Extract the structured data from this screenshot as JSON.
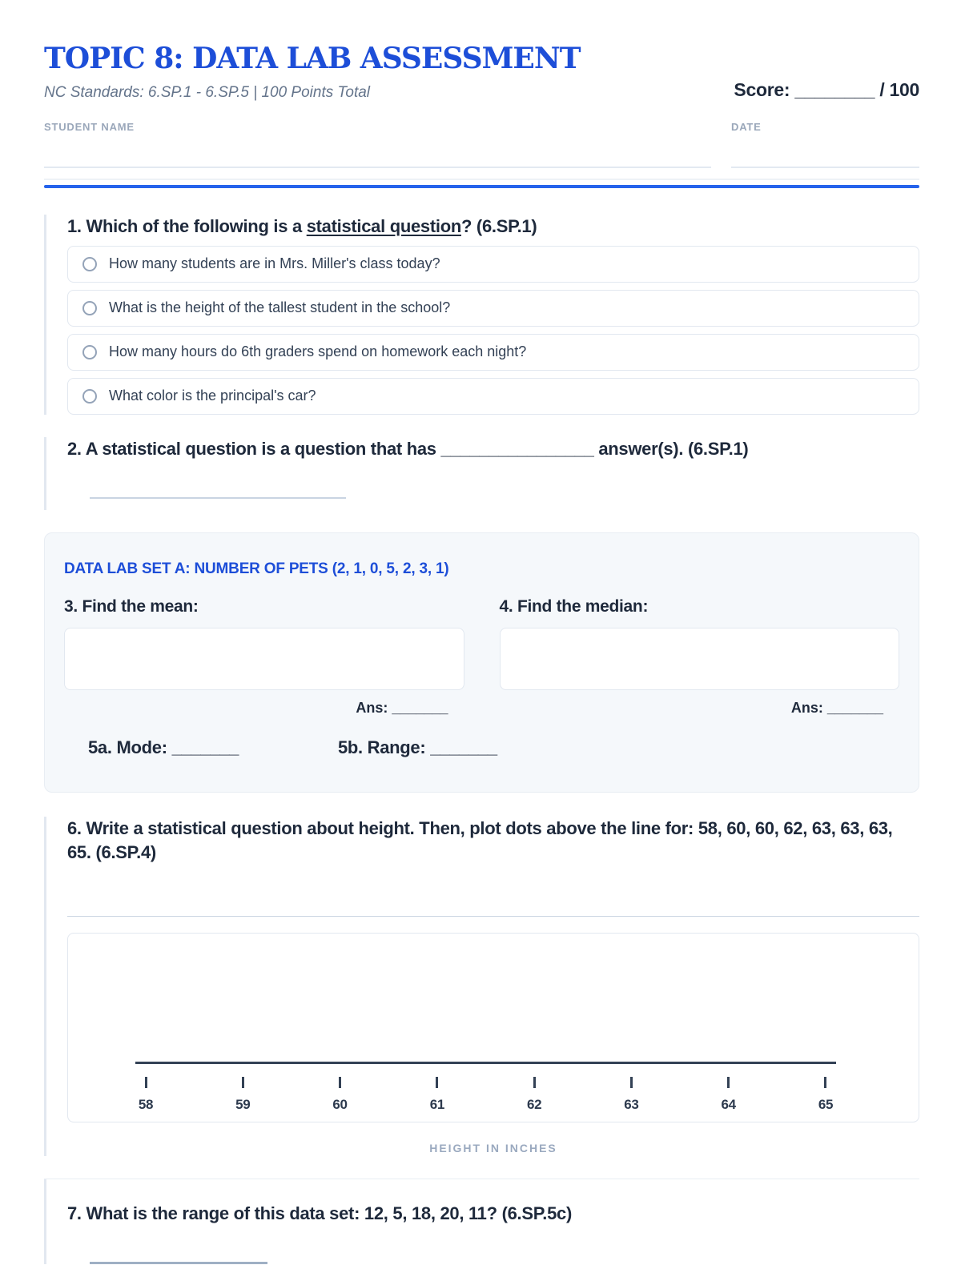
{
  "header": {
    "title": "TOPIC 8: DATA LAB ASSESSMENT",
    "subtitle": "NC Standards: 6.SP.1 - 6.SP.5 | 100 Points Total",
    "score_label": "Score:",
    "score_blank": "________",
    "score_total": "/ 100",
    "student_name_label": "STUDENT NAME",
    "date_label": "DATE"
  },
  "q1": {
    "number_and_lead": "1. Which of the following is a ",
    "underlined": "statistical question",
    "tail": "? (6.SP.1)",
    "options": [
      "How many students are in Mrs. Miller's class today?",
      "What is the height of the tallest student in the school?",
      "How many hours do 6th graders spend on homework each night?",
      "What color is the principal's car?"
    ]
  },
  "q2": {
    "text": "2. A statistical question is a question that has ________________ answer(s). (6.SP.1)"
  },
  "data_lab": {
    "heading": "DATA LAB SET A: NUMBER OF PETS (2, 1, 0, 5, 2, 3, 1)",
    "q3_label": "3. Find the mean:",
    "q4_label": "4. Find the median:",
    "ans_text": "Ans: _______",
    "q5a_text": "5a. Mode: _______",
    "q5b_text": "5b. Range: _______"
  },
  "q6": {
    "text": "6. Write a statistical question about height. Then, plot dots above the line for: 58, 60, 60, 62, 63, 63, 63, 65. (6.SP.4)",
    "axis_ticks": [
      "58",
      "59",
      "60",
      "61",
      "62",
      "63",
      "64",
      "65"
    ],
    "axis_caption": "HEIGHT IN INCHES"
  },
  "q7": {
    "text": "7. What is the range of this data set: 12, 5, 18, 20, 11? (6.SP.5c)"
  },
  "colors": {
    "accent_blue": "#1d4ed8",
    "divider_blue": "#2563eb",
    "ink": "#1e293b"
  }
}
